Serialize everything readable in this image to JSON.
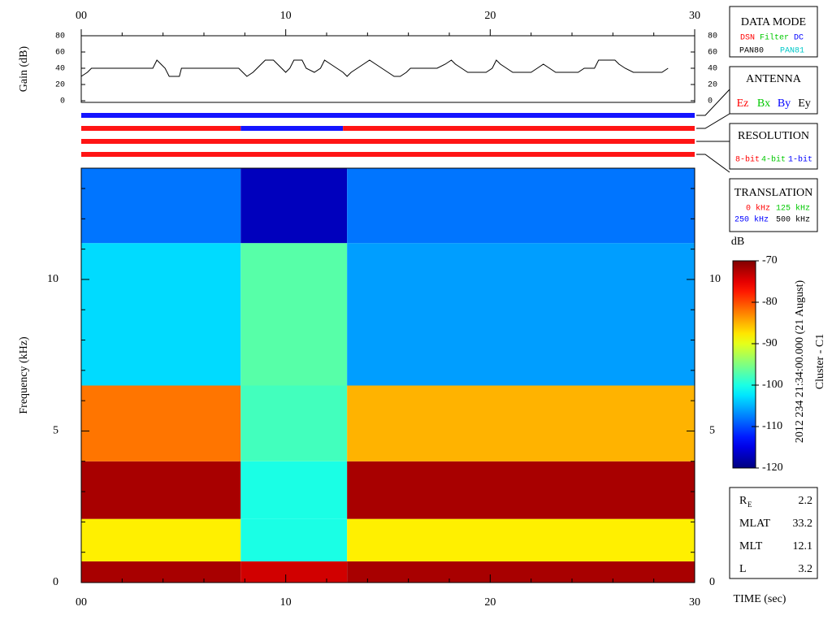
{
  "chart_data": [
    {
      "type": "line",
      "ylabel": "Gain (dB)",
      "color": "#000000",
      "x": [
        0,
        0.3,
        0.5,
        3.5,
        3.7,
        3.9,
        4.1,
        4.3,
        4.8,
        4.9,
        7.7,
        7.9,
        8.1,
        8.4,
        8.6,
        8.8,
        9.0,
        9.4,
        9.6,
        9.8,
        10.0,
        10.2,
        10.4,
        10.8,
        11.0,
        11.4,
        11.7,
        11.9,
        12.2,
        12.5,
        12.8,
        13.0,
        13.2,
        13.5,
        13.8,
        14.1,
        14.4,
        14.7,
        15.0,
        15.3,
        15.6,
        15.9,
        16.1,
        17.4,
        17.8,
        18.1,
        18.3,
        18.6,
        18.9,
        19.8,
        20.1,
        20.3,
        20.5,
        20.8,
        21.1,
        22.0,
        22.3,
        22.6,
        22.9,
        23.2,
        24.3,
        24.6,
        25.1,
        25.3,
        26.1,
        26.3,
        26.6,
        27.0,
        28.4,
        28.7
      ],
      "values": [
        30,
        35,
        40,
        40,
        50,
        45,
        40,
        30,
        30,
        40,
        40,
        35,
        30,
        35,
        40,
        45,
        50,
        50,
        45,
        40,
        35,
        40,
        50,
        50,
        40,
        35,
        40,
        50,
        45,
        40,
        35,
        30,
        35,
        40,
        45,
        50,
        45,
        40,
        35,
        30,
        30,
        35,
        40,
        40,
        45,
        50,
        45,
        40,
        35,
        35,
        40,
        50,
        45,
        40,
        35,
        35,
        40,
        45,
        40,
        35,
        35,
        40,
        40,
        50,
        50,
        45,
        40,
        35,
        35,
        40
      ],
      "xlim": [
        0,
        30
      ],
      "ylim": [
        0,
        80
      ],
      "yticks": [
        0,
        20,
        40,
        60,
        80
      ],
      "xticks": [
        {
          "value": 0,
          "label": "00"
        },
        10,
        20,
        30
      ],
      "xminorticks": [
        2,
        4,
        6,
        8,
        12,
        14,
        16,
        18,
        22,
        24,
        26,
        28
      ]
    },
    {
      "type": "segments",
      "xlim": [
        0,
        30
      ],
      "rows": [
        [
          {
            "start": 0,
            "end": 30,
            "color": "#1414ff"
          }
        ],
        [
          {
            "start": 0,
            "end": 7.8,
            "color": "#ff1414"
          },
          {
            "start": 7.8,
            "end": 12.8,
            "color": "#1414ff"
          },
          {
            "start": 12.8,
            "end": 30,
            "color": "#ff1414"
          }
        ],
        [
          {
            "start": 0,
            "end": 30,
            "color": "#ff1414"
          }
        ],
        [
          {
            "start": 0,
            "end": 30,
            "color": "#ff1414"
          }
        ]
      ]
    },
    {
      "type": "heatmap",
      "xlabel": "TIME (sec)",
      "ylabel": "Frequency (kHz)",
      "x_edges": [
        0,
        7.8,
        13,
        30
      ],
      "y_edges": [
        0,
        0.7,
        2.1,
        4,
        6.5,
        11.2,
        13.67
      ],
      "values": [
        [
          -72,
          -74,
          -72
        ],
        [
          -88,
          -100,
          -88
        ],
        [
          -72,
          -100,
          -72
        ],
        [
          -82,
          -98,
          -85
        ],
        [
          -103,
          -97,
          -106
        ],
        [
          -108,
          -117,
          -108
        ]
      ],
      "xlim": [
        0,
        30
      ],
      "ylim": [
        0,
        13.67
      ],
      "xticks": [
        {
          "value": 0,
          "label": "00"
        },
        10,
        20,
        30
      ],
      "xminorticks": [
        2,
        4,
        6,
        8,
        12,
        14,
        16,
        18,
        22,
        24,
        26,
        28
      ],
      "yticks": [
        0,
        5,
        10
      ],
      "yminorticks": [
        1,
        2,
        3,
        4,
        6,
        7,
        8,
        9,
        11,
        12,
        13
      ],
      "colorbar": {
        "label": "dB",
        "lim": [
          -120,
          -70
        ],
        "ticks": [
          -70,
          -80,
          -90,
          -100,
          -110,
          -120
        ]
      }
    }
  ],
  "panels": [
    {
      "title": "DATA MODE",
      "options": [
        {
          "text": "DSN",
          "color": "#ff0000"
        },
        {
          "text": "Filter",
          "color": "#00c800"
        },
        {
          "text": "DC",
          "color": "#0000ff"
        },
        {
          "text": "PAN80",
          "color": "#000000"
        },
        {
          "text": "PAN81",
          "color": "#00c8c8"
        }
      ]
    },
    {
      "title": "ANTENNA",
      "options": [
        {
          "text": "Ez",
          "color": "#ff0000"
        },
        {
          "text": "Bx",
          "color": "#00c800"
        },
        {
          "text": "By",
          "color": "#0000ff"
        },
        {
          "text": "Ey",
          "color": "#000000"
        }
      ]
    },
    {
      "title": "RESOLUTION",
      "options": [
        {
          "text": "8-bit",
          "color": "#ff0000"
        },
        {
          "text": "4-bit",
          "color": "#00c800"
        },
        {
          "text": "1-bit",
          "color": "#0000ff"
        }
      ]
    },
    {
      "title": "TRANSLATION",
      "options": [
        {
          "text": "0 kHz",
          "color": "#ff0000"
        },
        {
          "text": "125 kHz",
          "color": "#00c800"
        },
        {
          "text": "250 kHz",
          "color": "#0000ff"
        },
        {
          "text": "500 kHz",
          "color": "#000000"
        }
      ]
    }
  ],
  "info": {
    "timestamp": "2012 234 21:34:00.000 (21 August)",
    "spacecraft": "Cluster - C1"
  },
  "stats": [
    {
      "label": "R",
      "sub": "E",
      "value": 2.2
    },
    {
      "label": "MLAT",
      "value": 33.2
    },
    {
      "label": "MLT",
      "value": 12.1
    },
    {
      "label": "L",
      "value": 3.2
    }
  ]
}
